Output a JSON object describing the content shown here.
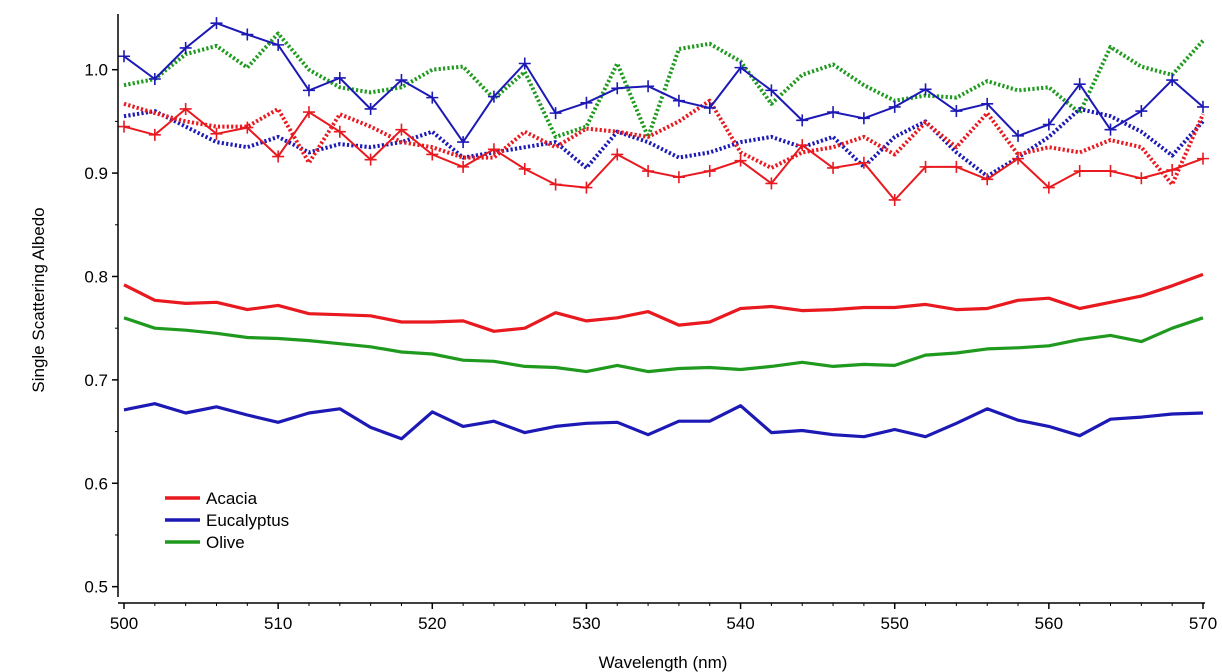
{
  "chart_data": {
    "type": "line",
    "xlabel": "Wavelength (nm)",
    "ylabel": "Single Scattering Albedo",
    "xlim": [
      500,
      570
    ],
    "ylim": [
      0.49,
      1.05
    ],
    "xticks": [
      500,
      510,
      520,
      530,
      540,
      550,
      560,
      570
    ],
    "yticks": [
      0.5,
      0.6,
      0.7,
      0.8,
      0.9,
      1.0
    ],
    "ytick_labels": [
      "0.5",
      "0.6",
      "0.7",
      "0.8",
      "0.9",
      "1.0"
    ],
    "legend_position": "bottom-left",
    "grid": false,
    "x": [
      500,
      502,
      504,
      506,
      508,
      510,
      512,
      514,
      516,
      518,
      520,
      522,
      524,
      526,
      528,
      530,
      532,
      534,
      536,
      538,
      540,
      542,
      544,
      546,
      548,
      550,
      552,
      554,
      556,
      558,
      560,
      562,
      564,
      566,
      568,
      570
    ],
    "legend": [
      {
        "name": "Acacia",
        "color": "#e8191f"
      },
      {
        "name": "Eucalyptus",
        "color": "#1c19b5"
      },
      {
        "name": "Olive",
        "color": "#1f9a1f"
      }
    ],
    "series": [
      {
        "species": "Acacia",
        "style": "solid",
        "marker": "none",
        "color": "#e8191f",
        "values": [
          0.792,
          0.777,
          0.774,
          0.775,
          0.768,
          0.772,
          0.764,
          0.763,
          0.762,
          0.756,
          0.756,
          0.757,
          0.747,
          0.75,
          0.765,
          0.757,
          0.76,
          0.766,
          0.753,
          0.756,
          0.769,
          0.771,
          0.767,
          0.768,
          0.77,
          0.77,
          0.773,
          0.768,
          0.769,
          0.777,
          0.779,
          0.769,
          0.775,
          0.781,
          0.791,
          0.802
        ]
      },
      {
        "species": "Olive",
        "style": "solid",
        "marker": "none",
        "color": "#1f9a1f",
        "values": [
          0.76,
          0.75,
          0.748,
          0.745,
          0.741,
          0.74,
          0.738,
          0.735,
          0.732,
          0.727,
          0.725,
          0.719,
          0.718,
          0.713,
          0.712,
          0.708,
          0.714,
          0.708,
          0.711,
          0.712,
          0.71,
          0.713,
          0.717,
          0.713,
          0.715,
          0.714,
          0.724,
          0.726,
          0.73,
          0.731,
          0.733,
          0.739,
          0.743,
          0.737,
          0.75,
          0.76
        ]
      },
      {
        "species": "Eucalyptus",
        "style": "solid",
        "marker": "none",
        "color": "#1c19b5",
        "values": [
          0.671,
          0.677,
          0.668,
          0.674,
          0.666,
          0.659,
          0.668,
          0.672,
          0.654,
          0.643,
          0.669,
          0.655,
          0.66,
          0.649,
          0.655,
          0.658,
          0.659,
          0.647,
          0.66,
          0.66,
          0.675,
          0.649,
          0.651,
          0.647,
          0.645,
          0.652,
          0.645,
          0.658,
          0.672,
          0.661,
          0.655,
          0.646,
          0.662,
          0.664,
          0.667,
          0.668
        ]
      },
      {
        "species": "Olive",
        "style": "dotted",
        "marker": "none",
        "color": "#1f9a1f",
        "values": [
          0.985,
          0.991,
          1.015,
          1.023,
          1.002,
          1.035,
          1.0,
          0.983,
          0.978,
          0.983,
          1.0,
          1.003,
          0.972,
          0.998,
          0.935,
          0.945,
          1.006,
          0.935,
          1.02,
          1.025,
          1.008,
          0.967,
          0.995,
          1.005,
          0.985,
          0.97,
          0.975,
          0.973,
          0.989,
          0.98,
          0.983,
          0.958,
          1.022,
          1.003,
          0.995,
          1.028
        ]
      },
      {
        "species": "Eucalyptus",
        "style": "dotted",
        "marker": "none",
        "color": "#1c19b5",
        "values": [
          0.955,
          0.96,
          0.945,
          0.93,
          0.925,
          0.935,
          0.92,
          0.928,
          0.925,
          0.93,
          0.94,
          0.915,
          0.92,
          0.925,
          0.93,
          0.905,
          0.94,
          0.93,
          0.915,
          0.92,
          0.93,
          0.935,
          0.925,
          0.935,
          0.906,
          0.935,
          0.95,
          0.92,
          0.897,
          0.915,
          0.935,
          0.962,
          0.955,
          0.94,
          0.917,
          0.95
        ]
      },
      {
        "species": "Acacia",
        "style": "dotted",
        "marker": "none",
        "color": "#e8191f",
        "values": [
          0.967,
          0.958,
          0.95,
          0.945,
          0.945,
          0.962,
          0.91,
          0.957,
          0.945,
          0.93,
          0.925,
          0.915,
          0.915,
          0.94,
          0.925,
          0.943,
          0.94,
          0.935,
          0.95,
          0.97,
          0.92,
          0.905,
          0.92,
          0.925,
          0.935,
          0.918,
          0.949,
          0.925,
          0.958,
          0.918,
          0.925,
          0.92,
          0.932,
          0.925,
          0.889,
          0.957
        ]
      },
      {
        "species": "Acacia",
        "style": "solid",
        "marker": "plus",
        "color": "#e8191f",
        "values": [
          0.945,
          0.937,
          0.962,
          0.938,
          0.944,
          0.916,
          0.959,
          0.94,
          0.913,
          0.942,
          0.918,
          0.906,
          0.923,
          0.904,
          0.889,
          0.886,
          0.918,
          0.902,
          0.896,
          0.902,
          0.912,
          0.89,
          0.927,
          0.905,
          0.91,
          0.874,
          0.906,
          0.906,
          0.894,
          0.914,
          0.886,
          0.902,
          0.902,
          0.895,
          0.903,
          0.914
        ]
      },
      {
        "species": "Eucalyptus",
        "style": "solid",
        "marker": "plus",
        "color": "#1c19b5",
        "values": [
          1.013,
          0.991,
          1.021,
          1.045,
          1.034,
          1.024,
          0.98,
          0.992,
          0.962,
          0.99,
          0.973,
          0.93,
          0.974,
          1.006,
          0.958,
          0.968,
          0.982,
          0.984,
          0.97,
          0.963,
          1.002,
          0.98,
          0.951,
          0.959,
          0.953,
          0.964,
          0.981,
          0.96,
          0.967,
          0.936,
          0.947,
          0.986,
          0.942,
          0.96,
          0.99,
          0.964
        ]
      }
    ]
  }
}
